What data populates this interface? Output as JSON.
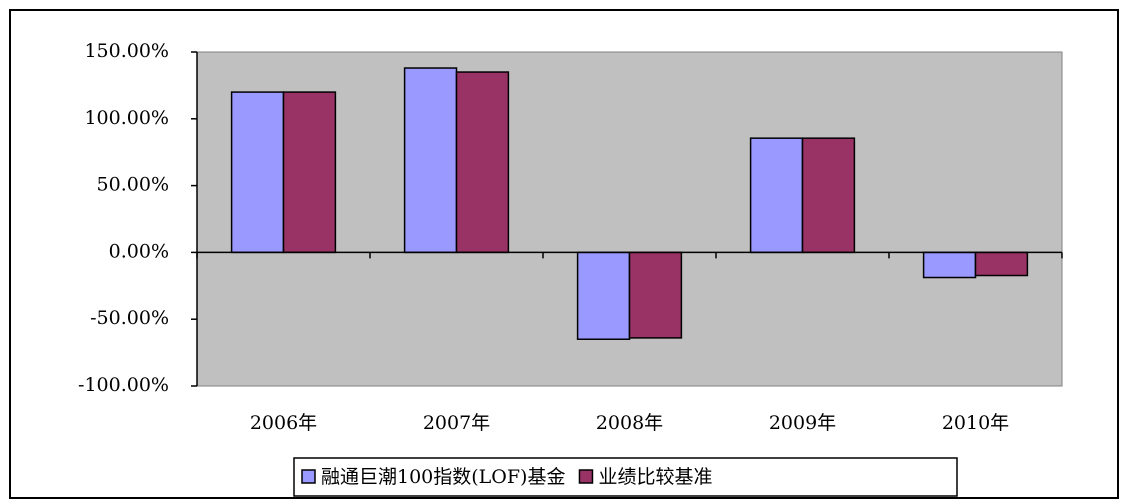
{
  "chart_data": {
    "type": "bar",
    "categories": [
      "2006年",
      "2007年",
      "2008年",
      "2009年",
      "2010年"
    ],
    "series": [
      {
        "name": "融通巨潮100指数(LOF)基金",
        "color": "#9999ff",
        "values": [
          120,
          138,
          -65,
          85.5,
          -18.8
        ]
      },
      {
        "name": "业绩比较基准",
        "color": "#993366",
        "values": [
          120,
          135,
          -64,
          85.5,
          -17.3
        ]
      }
    ],
    "ylim": [
      -100,
      150
    ],
    "yticks": [
      {
        "value": -100,
        "label": "-100.00%"
      },
      {
        "value": -50,
        "label": "-50.00%"
      },
      {
        "value": 0,
        "label": "0.00%"
      },
      {
        "value": 50,
        "label": "50.00%"
      },
      {
        "value": 100,
        "label": "100.00%"
      },
      {
        "value": 150,
        "label": "150.00%"
      }
    ],
    "plot_background": "#c0c0c0"
  }
}
